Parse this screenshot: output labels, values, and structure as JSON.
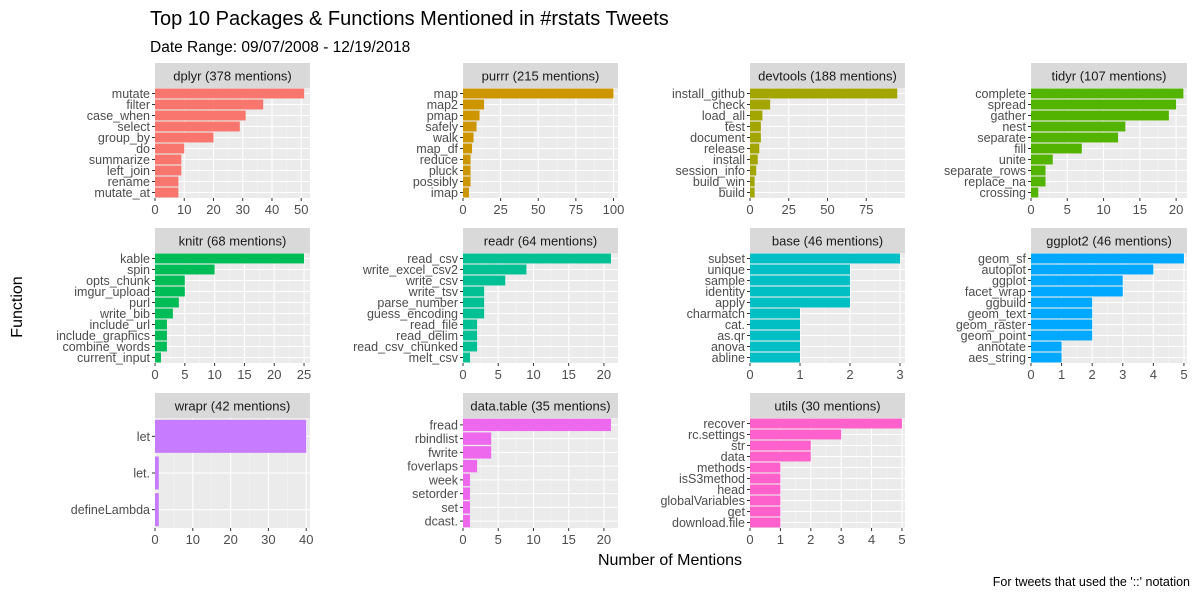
{
  "chart_data": {
    "type": "bar",
    "title": "Top 10 Packages & Functions Mentioned in #rstats Tweets",
    "subtitle": "Date Range: 09/07/2008 - 12/19/2018",
    "xlabel": "Number of Mentions",
    "ylabel": "Function",
    "caption": "For tweets that used the '::' notation",
    "orientation": "horizontal",
    "grid": true,
    "panels": [
      {
        "strip": "dplyr (378 mentions)",
        "color": "#F8766D",
        "xlim": [
          0,
          53
        ],
        "xticks": [
          0,
          10,
          20,
          30,
          40,
          50
        ],
        "categories": [
          "mutate",
          "filter",
          "case_when",
          "select",
          "group_by",
          "do",
          "summarize",
          "left_join",
          "rename",
          "mutate_at"
        ],
        "values": [
          51,
          37,
          31,
          29,
          20,
          10,
          9,
          9,
          8,
          8
        ]
      },
      {
        "strip": "purrr (215 mentions)",
        "color": "#CD9600",
        "xlim": [
          0,
          103
        ],
        "xticks": [
          0,
          25,
          50,
          75,
          100
        ],
        "categories": [
          "map",
          "map2",
          "pmap",
          "safely",
          "walk",
          "map_df",
          "reduce",
          "pluck",
          "possibly",
          "imap"
        ],
        "values": [
          100,
          14,
          11,
          9,
          7,
          6,
          5,
          5,
          5,
          4
        ]
      },
      {
        "strip": "devtools (188 mentions)",
        "color": "#A3A500",
        "xlim": [
          0,
          100
        ],
        "xticks": [
          0,
          25,
          50,
          75
        ],
        "categories": [
          "install_github",
          "check",
          "load_all",
          "test",
          "document",
          "release",
          "install",
          "session_info",
          "build_win",
          "build"
        ],
        "values": [
          95,
          13,
          8,
          7,
          7,
          6,
          5,
          4,
          3,
          3
        ]
      },
      {
        "strip": "tidyr (107 mentions)",
        "color": "#53B400",
        "xlim": [
          0,
          21.5
        ],
        "xticks": [
          0,
          5,
          10,
          15,
          20
        ],
        "xticklabels": [
          "0",
          "5",
          "10",
          "15",
          "20"
        ],
        "categories": [
          "complete",
          "spread",
          "gather",
          "nest",
          "separate",
          "fill",
          "unite",
          "separate_rows",
          "replace_na",
          "crossing"
        ],
        "values": [
          21,
          20,
          19,
          13,
          12,
          7,
          3,
          2,
          2,
          1
        ]
      },
      {
        "strip": "knitr (68 mentions)",
        "color": "#00BC56",
        "xlim": [
          0,
          26
        ],
        "xticks": [
          0,
          5,
          10,
          15,
          20,
          25
        ],
        "categories": [
          "kable",
          "spin",
          "opts_chunk",
          "imgur_upload",
          "purl",
          "write_bib",
          "include_url",
          "include_graphics",
          "combine_words",
          "current_input"
        ],
        "values": [
          25,
          10,
          5,
          5,
          4,
          3,
          2,
          2,
          2,
          1
        ]
      },
      {
        "strip": "readr (64 mentions)",
        "color": "#00C094",
        "xlim": [
          0,
          22
        ],
        "xticks": [
          0,
          5,
          10,
          15,
          20
        ],
        "categories": [
          "read_csv",
          "write_excel_csv2",
          "write_csv",
          "write_tsv",
          "parse_number",
          "guess_encoding",
          "read_file",
          "read_delim",
          "read_csv_chunked",
          "melt_csv"
        ],
        "values": [
          21,
          9,
          6,
          3,
          3,
          3,
          2,
          2,
          2,
          1
        ]
      },
      {
        "strip": "base (46 mentions)",
        "color": "#00BFC4",
        "xlim": [
          0,
          3.1
        ],
        "xticks": [
          0,
          1,
          2,
          3
        ],
        "categories": [
          "subset",
          "unique",
          "sample",
          "identity",
          "apply",
          "charmatch",
          "cat.",
          "as.qr",
          "anova",
          "abline"
        ],
        "values": [
          3,
          2,
          2,
          2,
          2,
          1,
          1,
          1,
          1,
          1
        ]
      },
      {
        "strip": "ggplot2 (46 mentions)",
        "color": "#00A9FF",
        "xlim": [
          0,
          5.1
        ],
        "xticks": [
          0,
          1,
          2,
          3,
          4,
          5
        ],
        "categories": [
          "geom_sf",
          "autoplot",
          "ggplot",
          "facet_wrap",
          "ggbuild",
          "geom_text",
          "geom_raster",
          "geom_point",
          "annotate",
          "aes_string"
        ],
        "values": [
          5,
          4,
          3,
          3,
          2,
          2,
          2,
          2,
          1,
          1
        ]
      },
      {
        "strip": "wrapr (42 mentions)",
        "color": "#C77CFF",
        "xlim": [
          0,
          41
        ],
        "xticks": [
          0,
          10,
          20,
          30,
          40
        ],
        "categories": [
          "let",
          "let.",
          "defineLambda"
        ],
        "values": [
          40,
          1,
          1
        ]
      },
      {
        "strip": "data.table (35 mentions)",
        "color": "#ED68ED",
        "xlim": [
          0,
          22
        ],
        "xticks": [
          0,
          5,
          10,
          15,
          20
        ],
        "categories": [
          "fread",
          "rbindlist",
          "fwrite",
          "foverlaps",
          "week",
          "setorder",
          "set",
          "dcast."
        ],
        "values": [
          21,
          4,
          4,
          2,
          1,
          1,
          1,
          1
        ]
      },
      {
        "strip": "utils (30 mentions)",
        "color": "#FF61CC",
        "xlim": [
          0,
          5.1
        ],
        "xticks": [
          0,
          1,
          2,
          3,
          4,
          5
        ],
        "categories": [
          "recover",
          "rc.settings",
          "str",
          "data",
          "methods",
          "isS3method",
          "head",
          "globalVariables",
          "get",
          "download.file"
        ],
        "values": [
          5,
          3,
          2,
          2,
          1,
          1,
          1,
          1,
          1,
          1
        ]
      }
    ]
  }
}
